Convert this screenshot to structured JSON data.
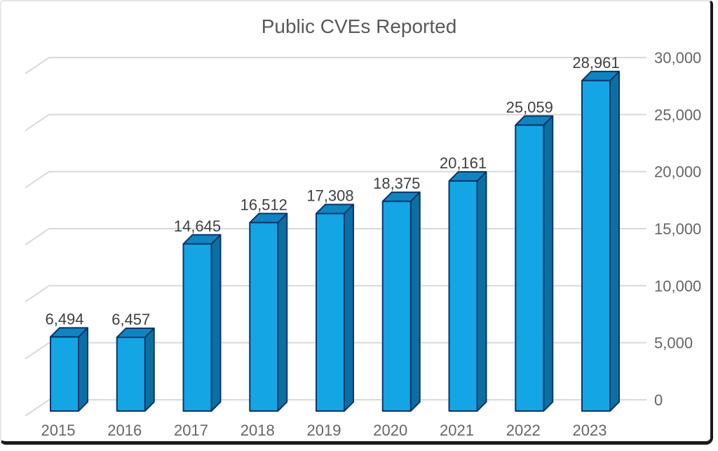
{
  "chart_data": {
    "type": "bar",
    "style": "3d-column",
    "title": "Public CVEs Reported",
    "xlabel": "",
    "ylabel": "",
    "categories": [
      "2015",
      "2016",
      "2017",
      "2018",
      "2019",
      "2020",
      "2021",
      "2022",
      "2023"
    ],
    "values": [
      6494,
      6457,
      14645,
      16512,
      17308,
      18375,
      20161,
      25059,
      28961
    ],
    "value_labels": [
      "6,494",
      "6,457",
      "14,645",
      "16,512",
      "17,308",
      "18,375",
      "20,161",
      "25,059",
      "28,961"
    ],
    "ylim": [
      0,
      30000
    ],
    "ytick_interval": 5000,
    "ytick_labels": [
      "0",
      "5,000",
      "10,000",
      "15,000",
      "20,000",
      "25,000",
      "30,000"
    ],
    "axis_side": "right",
    "grid": true,
    "legend": "none",
    "colors": {
      "bar_front": "#14A5E5",
      "bar_top": "#0F84C0",
      "bar_side": "#0C6FA2",
      "bar_outline": "#08366A",
      "gridline": "#D9D9D9",
      "title": "#595959",
      "axis_label": "#666666",
      "category_label": "#666666",
      "value_label": "#3F3F3F"
    }
  }
}
